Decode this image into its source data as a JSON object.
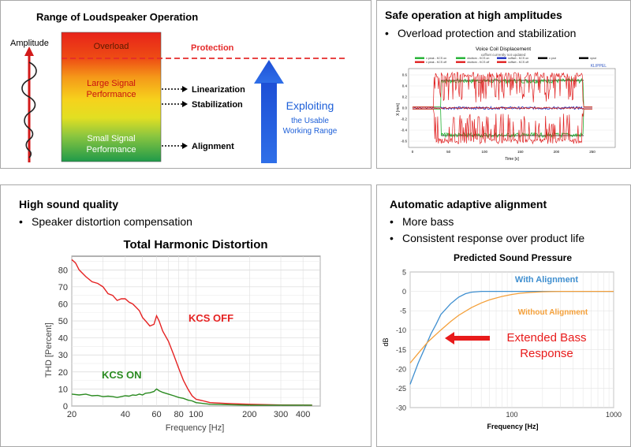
{
  "panel_tl": {
    "title": "Range of Loudspeaker Operation",
    "amplitude_label": "Amplitude",
    "zones": [
      "Overload",
      "Large Signal\nPerformance",
      "Small Signal\nPerformance"
    ],
    "protection_label": "Protection",
    "arrow_labels": [
      "Linearization",
      "Stabilization",
      "Alignment"
    ],
    "exploiting_label": "Exploiting",
    "usable_label": "the Usable\nWorking Range",
    "colors": {
      "overload": "#e8231a",
      "large": "#f6d21c",
      "small": "#1f9a4a",
      "arrow": "#1d4fd6",
      "protection": "#e52b2b"
    }
  },
  "panel_tr": {
    "title": "Safe operation at high amplitudes",
    "bullets": [
      "Overload protection and stabilization"
    ],
    "chart_title": "Voice Coil Displacement",
    "chart_subtitle": "xoffset currently not updated",
    "legend": [
      "x peak - KCS on",
      "xbottom - KCS on",
      "xoffset - KCS on",
      "x prot",
      "xprot",
      "x peak - KCS off",
      "xbottom - KCS off",
      "xoffset - KCS off"
    ],
    "brand": "KLIPPEL",
    "ylabel": "X [mm]",
    "xlabel": "Time [s]",
    "yticks": [
      "0.6",
      "0.4",
      "0.2",
      "0.0",
      "-0.2",
      "-0.4",
      "-0.6"
    ],
    "xticks": [
      "0",
      "50",
      "100",
      "150",
      "200",
      "250"
    ]
  },
  "panel_bl": {
    "title": "High sound quality",
    "bullets": [
      "Speaker distortion compensation"
    ],
    "chart_data": {
      "type": "line",
      "title": "Total Harmonic Distortion",
      "xlabel": "Frequency [Hz]",
      "ylabel": "THD [Percent]",
      "xscale": "log",
      "xlim": [
        20,
        500
      ],
      "ylim": [
        0,
        88
      ],
      "xticks": [
        20,
        40,
        60,
        80,
        100,
        200,
        300,
        400
      ],
      "yticks": [
        0,
        10,
        20,
        30,
        40,
        50,
        60,
        70,
        80
      ],
      "series": [
        {
          "name": "KCS OFF",
          "color": "#e52222",
          "x": [
            20,
            21,
            22,
            24,
            26,
            28,
            30,
            32,
            34,
            36,
            38,
            40,
            42,
            44,
            46,
            48,
            50,
            52,
            55,
            58,
            60,
            62,
            65,
            70,
            75,
            80,
            85,
            90,
            95,
            100,
            110,
            120,
            150,
            200,
            300,
            450
          ],
          "y": [
            86,
            84,
            80,
            76,
            73,
            72,
            70,
            66,
            65,
            62,
            63,
            63,
            61,
            60,
            58,
            56,
            52,
            50,
            47,
            48,
            53,
            50,
            44,
            38,
            30,
            22,
            15,
            10,
            6,
            4,
            3,
            2,
            1.5,
            1,
            0.6,
            0.5
          ]
        },
        {
          "name": "KCS ON",
          "color": "#2a8a20",
          "x": [
            20,
            22,
            24,
            26,
            28,
            30,
            32,
            34,
            36,
            38,
            40,
            42,
            44,
            46,
            48,
            50,
            52,
            55,
            58,
            60,
            62,
            65,
            70,
            75,
            80,
            85,
            90,
            95,
            100,
            110,
            120,
            150,
            200,
            300,
            450
          ],
          "y": [
            7,
            6.5,
            7,
            6,
            6.2,
            5.5,
            5.8,
            5.5,
            5,
            5.5,
            6,
            5.8,
            6.5,
            6.3,
            7,
            6.5,
            7.5,
            7.8,
            8.5,
            10,
            9,
            8,
            7,
            6,
            5,
            4.5,
            3.5,
            3,
            2,
            1.5,
            1,
            0.8,
            0.5,
            0.5,
            0.5
          ]
        }
      ]
    }
  },
  "panel_br": {
    "title": "Automatic adaptive alignment",
    "bullets": [
      "More bass",
      "Consistent response over product life"
    ],
    "chart_data": {
      "type": "line",
      "title": "Predicted Sound Pressure",
      "xlabel": "Frequency [Hz]",
      "ylabel": "dB",
      "xscale": "log",
      "xlim": [
        10,
        1000
      ],
      "ylim": [
        -30,
        5
      ],
      "xticks": [
        100,
        1000
      ],
      "yticks": [
        5,
        0,
        -5,
        -10,
        -15,
        -20,
        -25,
        -30
      ],
      "annotation": "Extended Bass\nResponse",
      "series": [
        {
          "name": "With Alignment",
          "color": "#3f8fd0",
          "x": [
            10,
            12,
            14,
            16,
            18,
            20,
            25,
            30,
            35,
            40,
            50,
            60,
            80,
            100,
            150,
            200,
            1000
          ],
          "y": [
            -24,
            -18.5,
            -14.5,
            -11,
            -8.5,
            -6,
            -3.2,
            -1.5,
            -0.6,
            -0.2,
            0,
            0,
            0,
            0,
            0,
            0,
            0
          ]
        },
        {
          "name": "Without Alignment",
          "color": "#f4a03a",
          "x": [
            10,
            12,
            15,
            20,
            25,
            30,
            40,
            50,
            60,
            80,
            100,
            120,
            150,
            200,
            300,
            500,
            1000
          ],
          "y": [
            -18.5,
            -16,
            -13,
            -10,
            -7.8,
            -6.2,
            -4.2,
            -3,
            -2.2,
            -1.3,
            -0.8,
            -0.5,
            -0.3,
            -0.1,
            0,
            0,
            0
          ]
        }
      ]
    }
  }
}
